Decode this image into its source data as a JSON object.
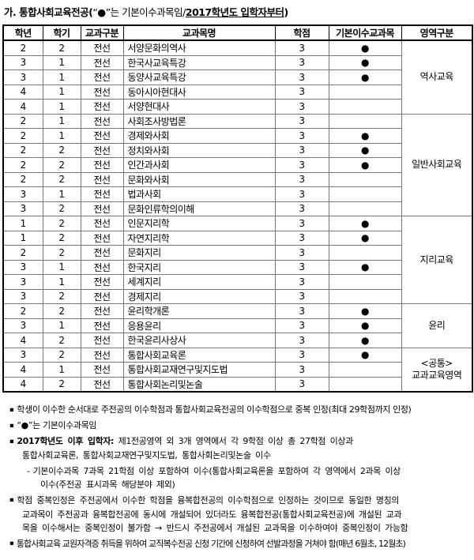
{
  "title": {
    "bold_prefix": "가.  통합사회교육전공(",
    "normal_mid": "“●”는 기본이수과목임/",
    "underlined": "2017학년도 입학자부터",
    "bold_suffix": ")"
  },
  "table": {
    "headers": [
      "학년",
      "학기",
      "교과구분",
      "교과목명",
      "학점",
      "기본이수교과목",
      "영역구분"
    ],
    "basic_dot": "●",
    "rows": [
      {
        "year": "2",
        "semester": "2",
        "category": "전선",
        "course": "서양문화의역사",
        "credits": "3",
        "basic": true
      },
      {
        "year": "3",
        "semester": "1",
        "category": "전선",
        "course": "한국사교육특강",
        "credits": "3",
        "basic": true
      },
      {
        "year": "3",
        "semester": "1",
        "category": "전선",
        "course": "동양사교육특강",
        "credits": "3",
        "basic": true
      },
      {
        "year": "4",
        "semester": "1",
        "category": "전선",
        "course": "동아시아현대사",
        "credits": "3",
        "basic": false
      },
      {
        "year": "4",
        "semester": "1",
        "category": "전선",
        "course": "서양현대사",
        "credits": "3",
        "basic": false
      },
      {
        "year": "2",
        "semester": "1",
        "category": "전선",
        "course": "사회조사방법론",
        "credits": "3",
        "basic": false
      },
      {
        "year": "2",
        "semester": "1",
        "category": "전선",
        "course": "경제와사회",
        "credits": "3",
        "basic": true
      },
      {
        "year": "2",
        "semester": "2",
        "category": "전선",
        "course": "정치와사회",
        "credits": "3",
        "basic": true
      },
      {
        "year": "2",
        "semester": "2",
        "category": "전선",
        "course": "인간과사회",
        "credits": "3",
        "basic": true
      },
      {
        "year": "2",
        "semester": "2",
        "category": "전선",
        "course": "문화와사회",
        "credits": "3",
        "basic": false
      },
      {
        "year": "3",
        "semester": "1",
        "category": "전선",
        "course": "법과사회",
        "credits": "3",
        "basic": false
      },
      {
        "year": "3",
        "semester": "2",
        "category": "전선",
        "course": "문화인류학의이해",
        "credits": "3",
        "basic": false
      },
      {
        "year": "1",
        "semester": "2",
        "category": "전선",
        "course": "인문지리학",
        "credits": "3",
        "basic": true
      },
      {
        "year": "1",
        "semester": "2",
        "category": "전선",
        "course": "자연지리학",
        "credits": "3",
        "basic": true
      },
      {
        "year": "2",
        "semester": "2",
        "category": "전선",
        "course": "문화지리",
        "credits": "3",
        "basic": false
      },
      {
        "year": "3",
        "semester": "1",
        "category": "전선",
        "course": "한국지리",
        "credits": "3",
        "basic": true
      },
      {
        "year": "3",
        "semester": "1",
        "category": "전선",
        "course": "세계지리",
        "credits": "3",
        "basic": false
      },
      {
        "year": "3",
        "semester": "2",
        "category": "전선",
        "course": "경제지리",
        "credits": "3",
        "basic": false
      },
      {
        "year": "2",
        "semester": "2",
        "category": "전선",
        "course": "윤리학개론",
        "credits": "3",
        "basic": true
      },
      {
        "year": "3",
        "semester": "1",
        "category": "전선",
        "course": "응용윤리",
        "credits": "3",
        "basic": true
      },
      {
        "year": "4",
        "semester": "2",
        "category": "전선",
        "course": "한국윤리사상사",
        "credits": "3",
        "basic": true
      },
      {
        "year": "3",
        "semester": "2",
        "category": "전선",
        "course": "통합사회교육론",
        "credits": "3",
        "basic": true
      },
      {
        "year": "4",
        "semester": "1",
        "category": "전선",
        "course": "통합사회교재연구및지도법",
        "credits": "3",
        "basic": false
      },
      {
        "year": "4",
        "semester": "2",
        "category": "전선",
        "course": "통합사회논리및논술",
        "credits": "3",
        "basic": false
      }
    ],
    "areas": [
      {
        "label": "역사교육",
        "rowspan": 5
      },
      {
        "label": "일반사회교육",
        "rowspan": 7
      },
      {
        "label": "지리교육",
        "rowspan": 6
      },
      {
        "label": "윤리",
        "rowspan": 3
      },
      {
        "label": "<공통>\n교과교육영역",
        "rowspan": 3
      }
    ]
  },
  "notes": [
    {
      "bullet": "▪",
      "indent": 0,
      "wide": false,
      "compressed": false,
      "lines": [
        [
          {
            "t": "학생이 이수한 순서대로 주전공의 이수학점과 통합사회교육전공의 이수학점으로 중복 인정(최대 29학점까지 인정)"
          }
        ]
      ]
    },
    {
      "bullet": "▪",
      "indent": 0,
      "wide": false,
      "compressed": false,
      "lines": [
        [
          {
            "t": "“●”는 기본이수과목임"
          }
        ]
      ]
    },
    {
      "bullet": "▪",
      "indent": 0,
      "wide": true,
      "compressed": false,
      "lines": [
        [
          {
            "t": "2017학년도 이후 입학자:",
            "b": true
          },
          {
            "t": " 제1전공영역 외 3개 영역에서 각 9학점 이상 총 27학점 이상과"
          }
        ],
        [
          {
            "t": "통합사회교육론, 통합사회교재연구및지도법, 통합사회논리및논술 이수"
          }
        ]
      ]
    },
    {
      "bullet": "-",
      "indent": 1,
      "wide": true,
      "compressed": false,
      "lines": [
        [
          {
            "t": "기본이수과목 7과목 21학점 이상 포함하여 이수(통합사회교육론을 포함하여 각 영역에서 2과목 이상"
          }
        ],
        [
          {
            "t": "이수(주전공 표시과목 해당분야 제외)"
          }
        ]
      ]
    },
    {
      "bullet": "▪",
      "indent": 0,
      "wide": true,
      "compressed": false,
      "lines": [
        [
          {
            "t": "학점 중복인정은 주전공에서 이수한 학점을 융복합전공의 이수학점으로 인정하는 것이므로 동일한 명칭의"
          }
        ],
        [
          {
            "t": "교과목이 주전공과 융복합전공에 동시에 개설되어 있더라도 융복합전공(통합사회교육전공)에 개설된 교과"
          }
        ],
        [
          {
            "t": "목을 이수해서는 중복인정이 불가함 → 반드시 주전공에서 개설된 교과목을 이수하여야 중복인정이 가능함"
          }
        ]
      ]
    },
    {
      "bullet": "▪",
      "indent": 0,
      "wide": false,
      "compressed": true,
      "lines": [
        [
          {
            "t": "통합사회교육 교원자격증 취득을 위하여 교직복수전공 신청 기간에 신청하여 선발과정을 거쳐야 함(매년 6월초, 12월초)"
          }
        ]
      ]
    }
  ]
}
